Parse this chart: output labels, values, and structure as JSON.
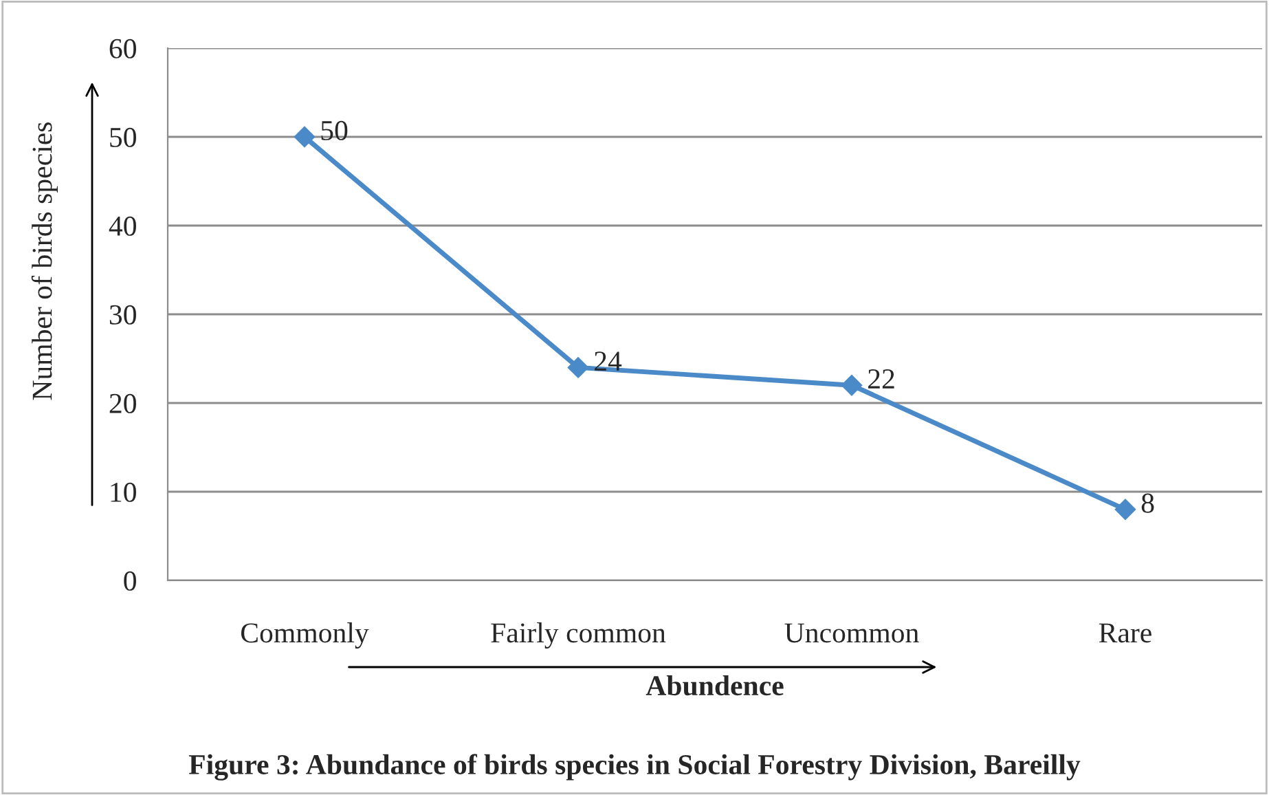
{
  "chart_data": {
    "type": "line",
    "title": "Figure 3: Abundance of birds species in Social Forestry Division, Bareilly",
    "xlabel": "Abundence",
    "ylabel": "Number of birds species",
    "categories": [
      "Commonly",
      "Fairly common",
      "Uncommon",
      "Rare"
    ],
    "series": [
      {
        "color": "#4a8ac8",
        "values": [
          50,
          24,
          22,
          8
        ]
      }
    ],
    "ylim": [
      0,
      60
    ],
    "yticks": [
      0,
      10,
      20,
      30,
      40,
      50,
      60
    ],
    "grid": "y",
    "marker": "diamond",
    "line_style": "solid",
    "data_labels": true
  }
}
